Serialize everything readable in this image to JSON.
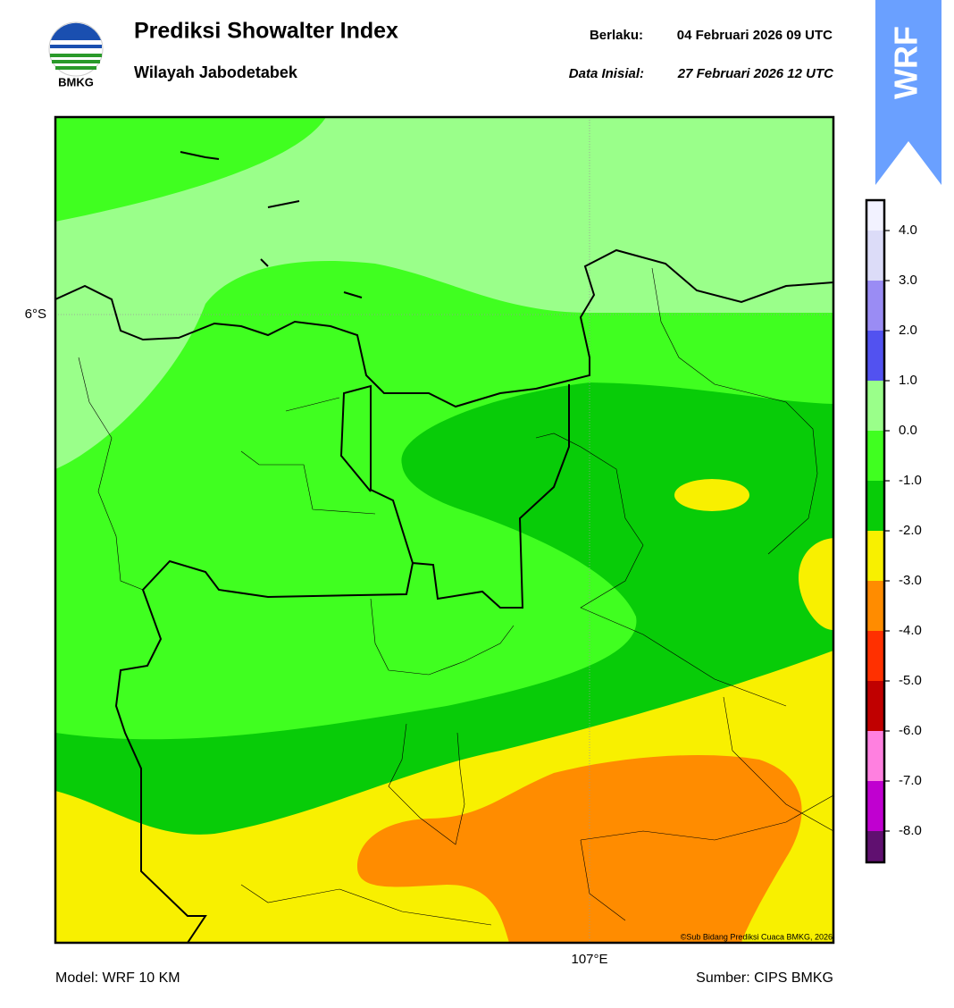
{
  "header": {
    "title": "Prediksi Showalter Index",
    "subtitle": "Wilayah Jabodetabek",
    "logo_text": "BMKG",
    "valid_label": "Berlaku:",
    "valid_time": "04 Februari 2026 09 UTC",
    "init_label": "Data Inisial:",
    "init_time": "27 Februari 2026 12 UTC",
    "badge": "WRF"
  },
  "map": {
    "lat_label": "6°S",
    "lon_label": "107°E",
    "credit": "©Sub Bidang Prediksi Cuaca BMKG, 2026"
  },
  "colorbar": {
    "ticks": [
      {
        "value": 4,
        "label": "4.0"
      },
      {
        "value": 3,
        "label": "3.0"
      },
      {
        "value": 2,
        "label": "2.0"
      },
      {
        "value": 1,
        "label": "1.0"
      },
      {
        "value": 0,
        "label": "0.0"
      },
      {
        "value": -1,
        "label": "-1.0"
      },
      {
        "value": -2,
        "label": "-2.0"
      },
      {
        "value": -3,
        "label": "-3.0"
      },
      {
        "value": -4,
        "label": "-4.0"
      },
      {
        "value": -5,
        "label": "-5.0"
      },
      {
        "value": -6,
        "label": "-6.0"
      },
      {
        "value": -7,
        "label": "-7.0"
      },
      {
        "value": -8,
        "label": "-8.0"
      }
    ],
    "colors": [
      "#f2f2ff",
      "#dcdcf8",
      "#9a8cf4",
      "#5252f0",
      "#9aff8a",
      "#40ff20",
      "#08cc08",
      "#f8f000",
      "#ff8c00",
      "#ff3000",
      "#c00000",
      "#ff80e0",
      "#c000d0",
      "#601070"
    ]
  },
  "footer": {
    "model": "Model: WRF 10 KM",
    "source": "Sumber: CIPS BMKG"
  }
}
